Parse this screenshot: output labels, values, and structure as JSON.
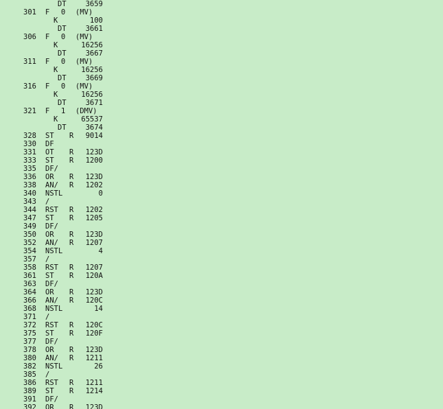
{
  "listing": {
    "rows": [
      {
        "op": "DT",
        "arg": "3659"
      },
      {
        "addr": "301",
        "op": "F",
        "reg": "0",
        "arg": "(MV)"
      },
      {
        "op": "K",
        "arg": "100"
      },
      {
        "op": "DT",
        "arg": "3661"
      },
      {
        "addr": "306",
        "op": "F",
        "reg": "0",
        "arg": "(MV)"
      },
      {
        "op": "K",
        "arg": "16256"
      },
      {
        "op": "DT",
        "arg": "3667"
      },
      {
        "addr": "311",
        "op": "F",
        "reg": "0",
        "arg": "(MV)"
      },
      {
        "op": "K",
        "arg": "16256"
      },
      {
        "op": "DT",
        "arg": "3669"
      },
      {
        "addr": "316",
        "op": "F",
        "reg": "0",
        "arg": "(MV)"
      },
      {
        "op": "K",
        "arg": "16256"
      },
      {
        "op": "DT",
        "arg": "3671"
      },
      {
        "addr": "321",
        "op": "F",
        "reg": "1",
        "arg": "(DMV)"
      },
      {
        "op": "K",
        "arg": "65537"
      },
      {
        "op": "DT",
        "arg": "3674"
      },
      {
        "addr": "328",
        "op": "ST",
        "reg": "R",
        "arg": "9014"
      },
      {
        "addr": "330",
        "op": "DF"
      },
      {
        "addr": "331",
        "op": "OT",
        "reg": "R",
        "arg": "123D"
      },
      {
        "addr": "333",
        "op": "ST",
        "reg": "R",
        "arg": "1200"
      },
      {
        "addr": "335",
        "op": "DF/"
      },
      {
        "addr": "336",
        "op": "OR",
        "reg": "R",
        "arg": "123D"
      },
      {
        "addr": "338",
        "op": "AN/",
        "reg": "R",
        "arg": "1202"
      },
      {
        "addr": "340",
        "op": "NSTL",
        "arg": "0"
      },
      {
        "addr": "343",
        "op": "/"
      },
      {
        "addr": "344",
        "op": "RST",
        "reg": "R",
        "arg": "1202"
      },
      {
        "addr": "347",
        "op": "ST",
        "reg": "R",
        "arg": "1205"
      },
      {
        "addr": "349",
        "op": "DF/"
      },
      {
        "addr": "350",
        "op": "OR",
        "reg": "R",
        "arg": "123D"
      },
      {
        "addr": "352",
        "op": "AN/",
        "reg": "R",
        "arg": "1207"
      },
      {
        "addr": "354",
        "op": "NSTL",
        "arg": "4"
      },
      {
        "addr": "357",
        "op": "/"
      },
      {
        "addr": "358",
        "op": "RST",
        "reg": "R",
        "arg": "1207"
      },
      {
        "addr": "361",
        "op": "ST",
        "reg": "R",
        "arg": "120A"
      },
      {
        "addr": "363",
        "op": "DF/"
      },
      {
        "addr": "364",
        "op": "OR",
        "reg": "R",
        "arg": "123D"
      },
      {
        "addr": "366",
        "op": "AN/",
        "reg": "R",
        "arg": "120C"
      },
      {
        "addr": "368",
        "op": "NSTL",
        "arg": "14"
      },
      {
        "addr": "371",
        "op": "/"
      },
      {
        "addr": "372",
        "op": "RST",
        "reg": "R",
        "arg": "120C"
      },
      {
        "addr": "375",
        "op": "ST",
        "reg": "R",
        "arg": "120F"
      },
      {
        "addr": "377",
        "op": "DF/"
      },
      {
        "addr": "378",
        "op": "OR",
        "reg": "R",
        "arg": "123D"
      },
      {
        "addr": "380",
        "op": "AN/",
        "reg": "R",
        "arg": "1211"
      },
      {
        "addr": "382",
        "op": "NSTL",
        "arg": "26"
      },
      {
        "addr": "385",
        "op": "/"
      },
      {
        "addr": "386",
        "op": "RST",
        "reg": "R",
        "arg": "1211"
      },
      {
        "addr": "389",
        "op": "ST",
        "reg": "R",
        "arg": "1214"
      },
      {
        "addr": "391",
        "op": "DF/"
      },
      {
        "addr": "392",
        "op": "OR",
        "reg": "R",
        "arg": "123D"
      }
    ]
  }
}
